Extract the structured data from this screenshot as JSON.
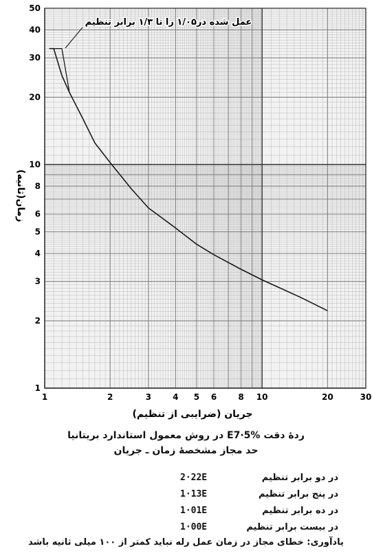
{
  "chart_data": {
    "type": "line",
    "x_scale": "log",
    "y_scale": "log",
    "xlim": [
      1,
      30
    ],
    "ylim": [
      1,
      50
    ],
    "grid": true,
    "xlabel": "جریان (ضرایبی از تنظیم)",
    "ylabel": "زمان(ثانیه)",
    "x_ticks": [
      {
        "value": 1,
        "label": "1"
      },
      {
        "value": 2,
        "label": "2"
      },
      {
        "value": 3,
        "label": "3"
      },
      {
        "value": 4,
        "label": "4"
      },
      {
        "value": 5,
        "label": "5"
      },
      {
        "value": 6,
        "label": "6"
      },
      {
        "value": 8,
        "label": "8"
      },
      {
        "value": 10,
        "label": "10"
      },
      {
        "value": 20,
        "label": "20"
      },
      {
        "value": 30,
        "label": "30"
      }
    ],
    "y_ticks": [
      {
        "value": 1,
        "label": "1"
      },
      {
        "value": 2,
        "label": "2"
      },
      {
        "value": 3,
        "label": "3"
      },
      {
        "value": 4,
        "label": "4"
      },
      {
        "value": 5,
        "label": "5"
      },
      {
        "value": 6,
        "label": "6"
      },
      {
        "value": 8,
        "label": "8"
      },
      {
        "value": 10,
        "label": "10"
      },
      {
        "value": 20,
        "label": "20"
      },
      {
        "value": 30,
        "label": "30"
      },
      {
        "value": 40,
        "label": "40"
      },
      {
        "value": 50,
        "label": "50"
      }
    ],
    "series": [
      {
        "x": [
          1.05,
          1.1,
          1.2,
          1.3,
          1.5,
          1.7,
          2,
          2.5,
          3,
          4,
          5,
          6,
          8,
          10,
          15,
          20
        ],
        "y": [
          33,
          33,
          25,
          21,
          16,
          12.5,
          10.2,
          7.8,
          6.4,
          5.2,
          4.4,
          3.95,
          3.4,
          3.05,
          2.55,
          2.22
        ]
      },
      {
        "x": [
          1.05,
          1.2,
          1.3
        ],
        "y": [
          33,
          33,
          21
        ]
      }
    ],
    "annotation": "عمل شده در۱/۰۵ را تا ۱/۳ برابر تنظیم"
  },
  "caption": {
    "line1": "ردهٔ دقت E7·5% در روش معمول استاندارد بریتانیا",
    "line2": "حد مجاز مشخصهٔ زمان ـ جریان"
  },
  "table": [
    {
      "label": "در دو برابر تنظیم",
      "value": "2·22E"
    },
    {
      "label": "در پنج برابر تنظیم",
      "value": "1·13E"
    },
    {
      "label": "در ده برابر تنظیم",
      "value": "1·01E"
    },
    {
      "label": "در بیست برابر تنظیم",
      "value": "1·00E"
    }
  ],
  "footnote": "یادآوری: خطای مجاز در زمان عمل رله نباید کمتر از ۱۰۰ میلی ثانیه باشد"
}
